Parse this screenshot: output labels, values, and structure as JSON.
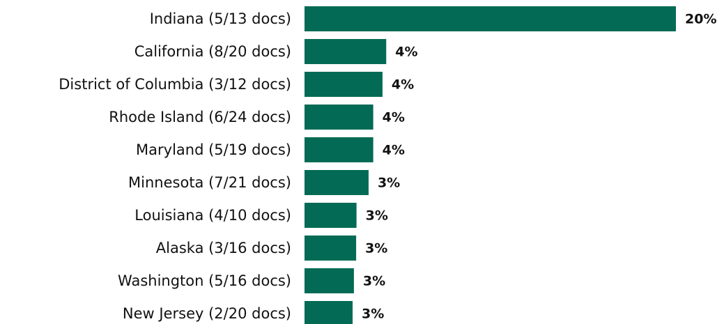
{
  "chart_data": {
    "type": "hbar",
    "categories": [
      "Indiana (5/13 docs)",
      "California (8/20 docs)",
      "District of Columbia (3/12 docs)",
      "Rhode Island (6/24 docs)",
      "Maryland (5/19 docs)",
      "Minnesota (7/21 docs)",
      "Louisiana (4/10 docs)",
      "Alaska (3/16 docs)",
      "Washington (5/16 docs)",
      "New Jersey (2/20 docs)"
    ],
    "values": [
      20,
      4.4,
      4.2,
      3.7,
      3.7,
      3.45,
      2.8,
      2.78,
      2.66,
      2.59
    ],
    "value_labels": [
      "20%",
      "4%",
      "4%",
      "4%",
      "4%",
      "3%",
      "3%",
      "3%",
      "3%",
      "3%"
    ],
    "color": "#036a55",
    "xlim": [
      0,
      20
    ]
  }
}
